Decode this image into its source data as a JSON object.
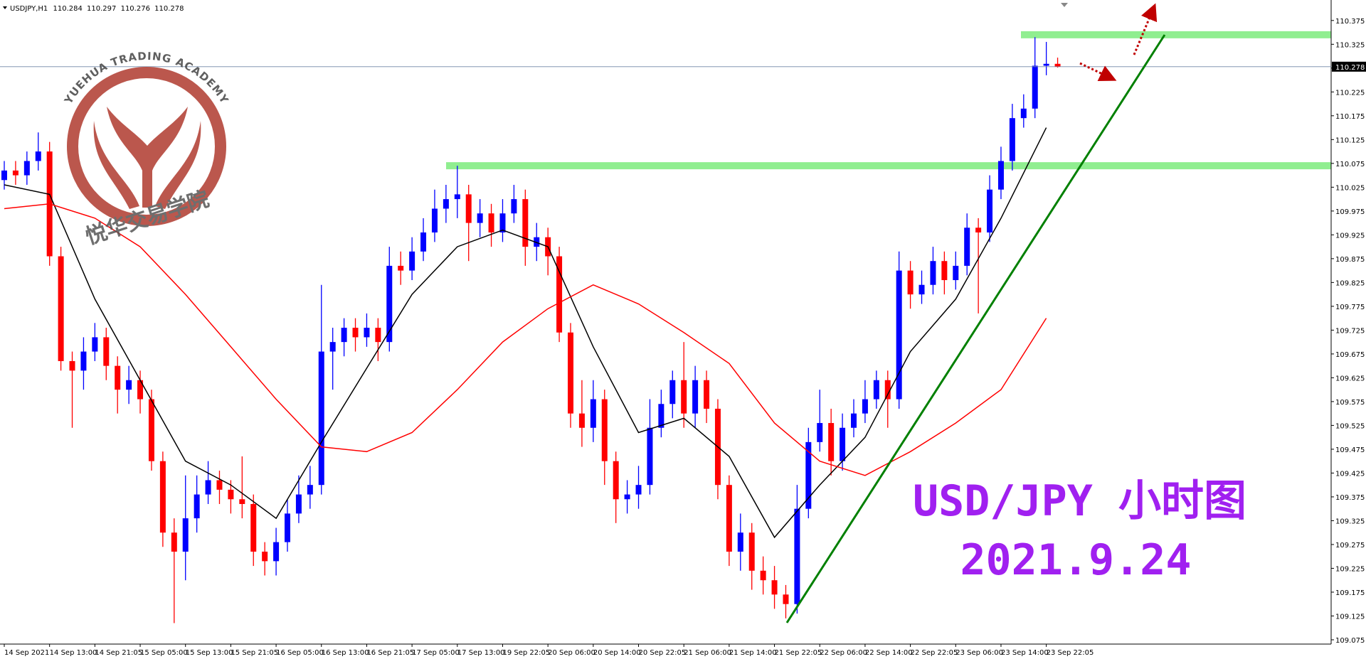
{
  "chart_data": {
    "type": "candlestick",
    "title": "USDJPY,H1",
    "x_ticks": [
      "14 Sep 2021",
      "14 Sep 13:00",
      "14 Sep 21:05",
      "15 Sep 05:00",
      "15 Sep 13:00",
      "15 Sep 21:05",
      "16 Sep 05:00",
      "16 Sep 13:00",
      "16 Sep 21:05",
      "17 Sep 05:00",
      "17 Sep 13:00",
      "19 Sep 22:05",
      "20 Sep 06:00",
      "20 Sep 14:00",
      "20 Sep 22:05",
      "21 Sep 06:00",
      "21 Sep 14:00",
      "21 Sep 22:05",
      "22 Sep 06:00",
      "22 Sep 14:00",
      "22 Sep 22:05",
      "23 Sep 06:00",
      "23 Sep 14:00",
      "23 Sep 22:05"
    ],
    "open": [
      110.04,
      110.06,
      110.05,
      110.08,
      110.1,
      109.88,
      109.66,
      109.64,
      109.68,
      109.71,
      109.65,
      109.6,
      109.62,
      109.58,
      109.45,
      109.3,
      109.26,
      109.33,
      109.38,
      109.41,
      109.39,
      109.37,
      109.36,
      109.26,
      109.24,
      109.28,
      109.34,
      109.38,
      109.4,
      109.68,
      109.7,
      109.73,
      109.71,
      109.73,
      109.7,
      109.86,
      109.85,
      109.89,
      109.93,
      109.98,
      110.0,
      110.01,
      109.95,
      109.97,
      109.93,
      109.97,
      110.0,
      109.9,
      109.92,
      109.88,
      109.72,
      109.55,
      109.52,
      109.58,
      109.45,
      109.37,
      109.38,
      109.4,
      109.52,
      109.57,
      109.62,
      109.55,
      109.62,
      109.56,
      109.4,
      109.26,
      109.3,
      109.22,
      109.2,
      109.17,
      109.15,
      109.35,
      109.49,
      109.53,
      109.45,
      109.52,
      109.55,
      109.58,
      109.62,
      109.58,
      109.85,
      109.8,
      109.82,
      109.87,
      109.83,
      109.86,
      109.94,
      109.93,
      110.02,
      110.08,
      110.17,
      110.19,
      110.28,
      110.284
    ],
    "high": [
      110.08,
      110.08,
      110.1,
      110.14,
      110.12,
      109.9,
      109.68,
      109.71,
      109.74,
      109.73,
      109.67,
      109.65,
      109.64,
      109.6,
      109.47,
      109.33,
      109.42,
      109.42,
      109.45,
      109.43,
      109.41,
      109.46,
      109.38,
      109.28,
      109.31,
      109.37,
      109.42,
      109.44,
      109.82,
      109.73,
      109.75,
      109.75,
      109.76,
      109.75,
      109.9,
      109.89,
      109.92,
      109.96,
      110.02,
      110.03,
      110.07,
      110.03,
      110.0,
      109.99,
      110.0,
      110.03,
      110.02,
      109.95,
      109.94,
      109.9,
      109.74,
      109.62,
      109.62,
      109.6,
      109.47,
      109.41,
      109.44,
      109.58,
      109.6,
      109.64,
      109.7,
      109.65,
      109.64,
      109.58,
      109.42,
      109.34,
      109.32,
      109.25,
      109.23,
      109.19,
      109.4,
      109.52,
      109.6,
      109.56,
      109.55,
      109.58,
      109.62,
      109.64,
      109.64,
      109.89,
      109.87,
      109.85,
      109.9,
      109.89,
      109.89,
      109.97,
      109.96,
      110.05,
      110.11,
      110.2,
      110.22,
      110.34,
      110.33,
      110.297
    ],
    "low": [
      110.02,
      110.03,
      110.03,
      110.06,
      109.86,
      109.64,
      109.52,
      109.6,
      109.66,
      109.62,
      109.55,
      109.57,
      109.55,
      109.43,
      109.27,
      109.11,
      109.2,
      109.3,
      109.36,
      109.36,
      109.34,
      109.33,
      109.23,
      109.21,
      109.21,
      109.26,
      109.32,
      109.35,
      109.38,
      109.6,
      109.67,
      109.68,
      109.69,
      109.66,
      109.68,
      109.82,
      109.83,
      109.87,
      109.91,
      109.95,
      109.96,
      109.87,
      109.92,
      109.9,
      109.91,
      109.95,
      109.86,
      109.87,
      109.84,
      109.7,
      109.52,
      109.48,
      109.49,
      109.4,
      109.32,
      109.34,
      109.35,
      109.38,
      109.5,
      109.54,
      109.52,
      109.52,
      109.53,
      109.37,
      109.23,
      109.22,
      109.18,
      109.17,
      109.14,
      109.12,
      109.13,
      109.33,
      109.47,
      109.42,
      109.43,
      109.5,
      109.53,
      109.56,
      109.52,
      109.56,
      109.77,
      109.78,
      109.8,
      109.8,
      109.81,
      109.84,
      109.76,
      109.91,
      110.0,
      110.06,
      110.15,
      110.17,
      110.26,
      110.276
    ],
    "close": [
      110.06,
      110.05,
      110.08,
      110.1,
      109.88,
      109.66,
      109.64,
      109.68,
      109.71,
      109.65,
      109.6,
      109.62,
      109.58,
      109.45,
      109.3,
      109.26,
      109.33,
      109.38,
      109.41,
      109.39,
      109.37,
      109.36,
      109.26,
      109.24,
      109.28,
      109.34,
      109.38,
      109.4,
      109.68,
      109.7,
      109.73,
      109.71,
      109.73,
      109.7,
      109.86,
      109.85,
      109.89,
      109.93,
      109.98,
      110.0,
      110.01,
      109.95,
      109.97,
      109.93,
      109.97,
      110.0,
      109.9,
      109.92,
      109.88,
      109.72,
      109.55,
      109.52,
      109.58,
      109.45,
      109.37,
      109.38,
      109.4,
      109.52,
      109.57,
      109.62,
      109.55,
      109.62,
      109.56,
      109.4,
      109.26,
      109.3,
      109.22,
      109.2,
      109.17,
      109.15,
      109.35,
      109.49,
      109.53,
      109.45,
      109.52,
      109.55,
      109.58,
      109.62,
      109.58,
      109.85,
      109.8,
      109.82,
      109.87,
      109.83,
      109.86,
      109.94,
      109.93,
      110.02,
      110.08,
      110.17,
      110.19,
      110.28,
      110.284,
      110.278
    ],
    "up_color": "#0000ff",
    "down_color": "#ff0000",
    "moving_averages": [
      {
        "color": "#000000",
        "values": [
          110.03,
          110.01,
          109.79,
          109.62,
          109.45,
          109.4,
          109.33,
          109.49,
          109.645,
          109.8,
          109.9,
          109.935,
          109.9,
          109.69,
          109.51,
          109.54,
          109.46,
          109.29,
          109.4,
          109.5,
          109.68,
          109.79,
          109.96,
          110.15
        ]
      },
      {
        "color": "#ff0000",
        "values": [
          109.98,
          109.99,
          109.96,
          109.9,
          109.8,
          109.69,
          109.58,
          109.48,
          109.47,
          109.51,
          109.6,
          109.7,
          109.77,
          109.82,
          109.78,
          109.72,
          109.655,
          109.53,
          109.45,
          109.42,
          109.47,
          109.53,
          109.6,
          109.75
        ]
      }
    ],
    "levels": {
      "color": "#90ee90",
      "values": [
        110.07,
        110.345
      ]
    },
    "ylim": [
      109.066,
      110.412
    ],
    "yticks": [
      109.075,
      109.125,
      109.175,
      109.225,
      109.275,
      109.325,
      109.375,
      109.425,
      109.475,
      109.525,
      109.575,
      109.625,
      109.675,
      109.725,
      109.775,
      109.825,
      109.875,
      109.925,
      109.975,
      110.025,
      110.075,
      110.125,
      110.175,
      110.225,
      110.275,
      110.325,
      110.375
    ],
    "watermark": {
      "arc_text": "YUEHUA TRADING ACADEMY",
      "cn_text": "悦华交易学院"
    },
    "overlay_text": [
      "USD/JPY 小时图",
      "2021.9.24"
    ]
  }
}
